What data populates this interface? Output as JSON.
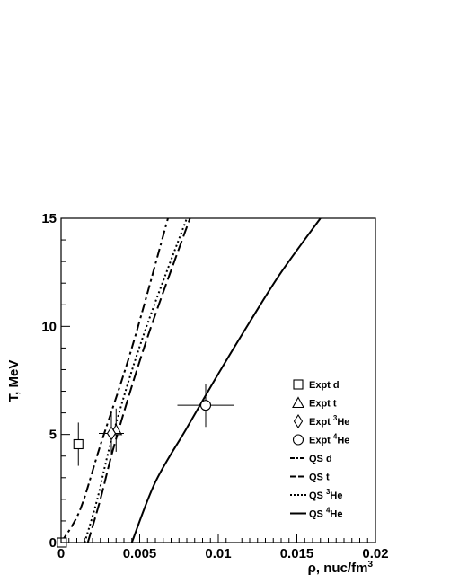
{
  "chart_data": {
    "type": "line",
    "xlabel": "ρ, nuc/fm",
    "xlabel_sup": "3",
    "ylabel": "T, MeV",
    "xlim": [
      0,
      0.02
    ],
    "ylim": [
      0,
      15
    ],
    "x_ticks": [
      "0",
      "0.005",
      "0.01",
      "0.015",
      "0.02"
    ],
    "y_ticks": [
      "0",
      "5",
      "10",
      "15"
    ],
    "legend_position": "right",
    "series": [
      {
        "name": "QS d",
        "kind": "curve",
        "style": "dashdot",
        "points": [
          [
            0.0,
            0.0
          ],
          [
            0.0012,
            1.5
          ],
          [
            0.0025,
            4.5
          ],
          [
            0.0045,
            9.0
          ],
          [
            0.0068,
            15.0
          ]
        ]
      },
      {
        "name": "QS t",
        "kind": "curve",
        "style": "dashed",
        "points": [
          [
            0.0017,
            0.0
          ],
          [
            0.0025,
            2.0
          ],
          [
            0.0035,
            4.8
          ],
          [
            0.0055,
            9.5
          ],
          [
            0.0082,
            15.0
          ]
        ]
      },
      {
        "name": "QS ³He",
        "kind": "curve",
        "style": "dotted",
        "points": [
          [
            0.0015,
            0.0
          ],
          [
            0.0023,
            2.0
          ],
          [
            0.0033,
            5.0
          ],
          [
            0.0052,
            9.5
          ],
          [
            0.008,
            15.0
          ]
        ]
      },
      {
        "name": "QS ⁴He",
        "kind": "curve",
        "style": "solid",
        "points": [
          [
            0.0045,
            0.0
          ],
          [
            0.006,
            2.8
          ],
          [
            0.008,
            5.3
          ],
          [
            0.01,
            7.8
          ],
          [
            0.012,
            10.2
          ],
          [
            0.014,
            12.5
          ],
          [
            0.0165,
            15.0
          ]
        ]
      },
      {
        "name": "Expt d",
        "kind": "points",
        "marker": "square",
        "points": [
          {
            "x": 0.0011,
            "y": 4.55,
            "xerr": 0.0,
            "yerr": 1.0
          }
        ]
      },
      {
        "name": "Expt t",
        "kind": "points",
        "marker": "triangle",
        "points": [
          {
            "x": 0.0035,
            "y": 5.2,
            "xerr": 0.0,
            "yerr": 1.0
          }
        ]
      },
      {
        "name": "Expt ³He",
        "kind": "points",
        "marker": "diamond",
        "points": [
          {
            "x": 0.0032,
            "y": 5.05,
            "xerr": 0.0008,
            "yerr": 1.0
          }
        ]
      },
      {
        "name": "Expt ⁴He",
        "kind": "points",
        "marker": "circle",
        "points": [
          {
            "x": 0.0092,
            "y": 6.35,
            "xerr": 0.0018,
            "yerr": 1.0
          }
        ]
      }
    ],
    "legend": [
      {
        "label": "Expt d",
        "sup": "",
        "suffix": "",
        "kind": "marker",
        "symbol": "square"
      },
      {
        "label": "Expt t",
        "sup": "",
        "suffix": "",
        "kind": "marker",
        "symbol": "triangle"
      },
      {
        "label": "Expt ",
        "sup": "3",
        "suffix": "He",
        "kind": "marker",
        "symbol": "diamond"
      },
      {
        "label": "Expt ",
        "sup": "4",
        "suffix": "He",
        "kind": "marker",
        "symbol": "circle"
      },
      {
        "label": "QS d",
        "sup": "",
        "suffix": "",
        "kind": "line",
        "symbol": "dashdot"
      },
      {
        "label": "QS t",
        "sup": "",
        "suffix": "",
        "kind": "line",
        "symbol": "dashed"
      },
      {
        "label": "QS ",
        "sup": "3",
        "suffix": "He",
        "kind": "line",
        "symbol": "dotted"
      },
      {
        "label": "QS ",
        "sup": "4",
        "suffix": "He",
        "kind": "line",
        "symbol": "solid"
      }
    ]
  }
}
